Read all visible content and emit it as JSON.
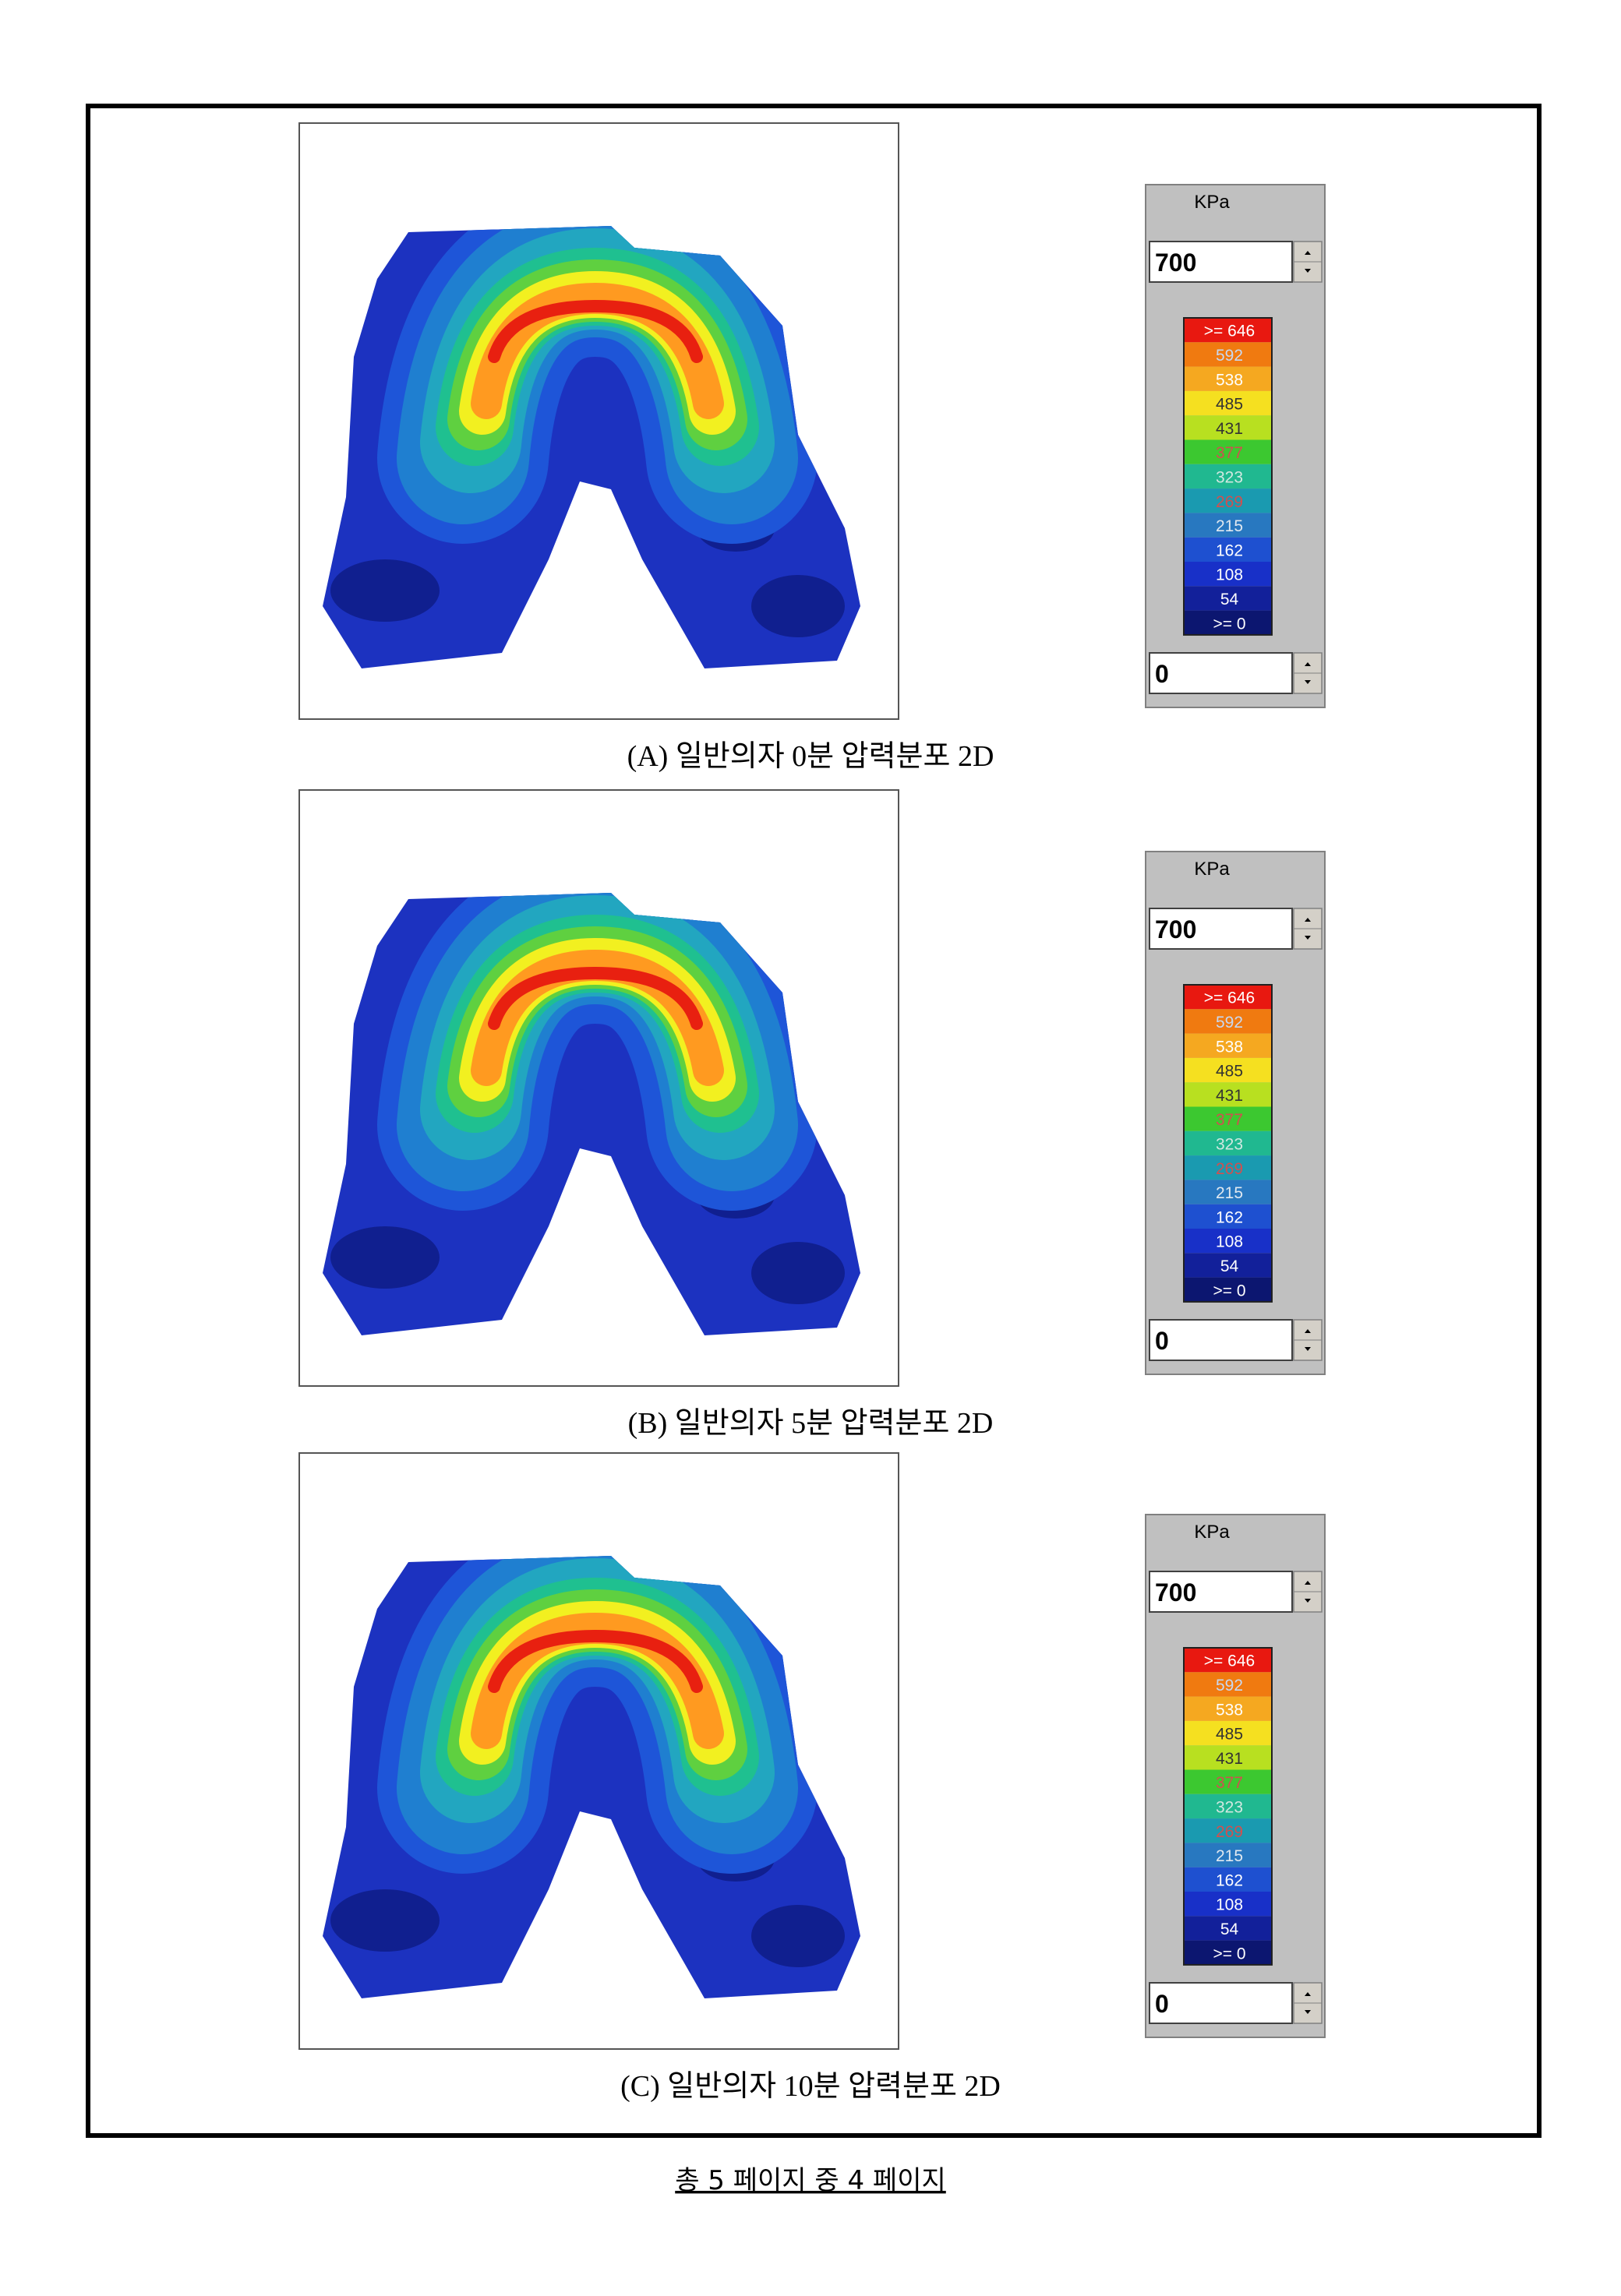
{
  "panels": [
    {
      "caption": "(A) 일반의자 0분 압력분포 2D",
      "legend": {
        "unit": "KPa",
        "max": "700",
        "min": "0",
        "levels": [
          ">= 646",
          "592",
          "538",
          "485",
          "431",
          "377",
          "323",
          "269",
          "215",
          "162",
          "108",
          "54",
          ">= 0"
        ]
      }
    },
    {
      "caption": "(B) 일반의자 5분 압력분포 2D",
      "legend": {
        "unit": "KPa",
        "max": "700",
        "min": "0",
        "levels": [
          ">= 646",
          "592",
          "538",
          "485",
          "431",
          "377",
          "323",
          "269",
          "215",
          "162",
          "108",
          "54",
          ">= 0"
        ]
      }
    },
    {
      "caption": "(C) 일반의자 10분 압력분포 2D",
      "legend": {
        "unit": "KPa",
        "max": "700",
        "min": "0",
        "levels": [
          ">= 646",
          "592",
          "538",
          "485",
          "431",
          "377",
          "323",
          "269",
          "215",
          "162",
          "108",
          "54",
          ">= 0"
        ]
      }
    }
  ],
  "footer": "총 5 페이지 중 4 페이지"
}
